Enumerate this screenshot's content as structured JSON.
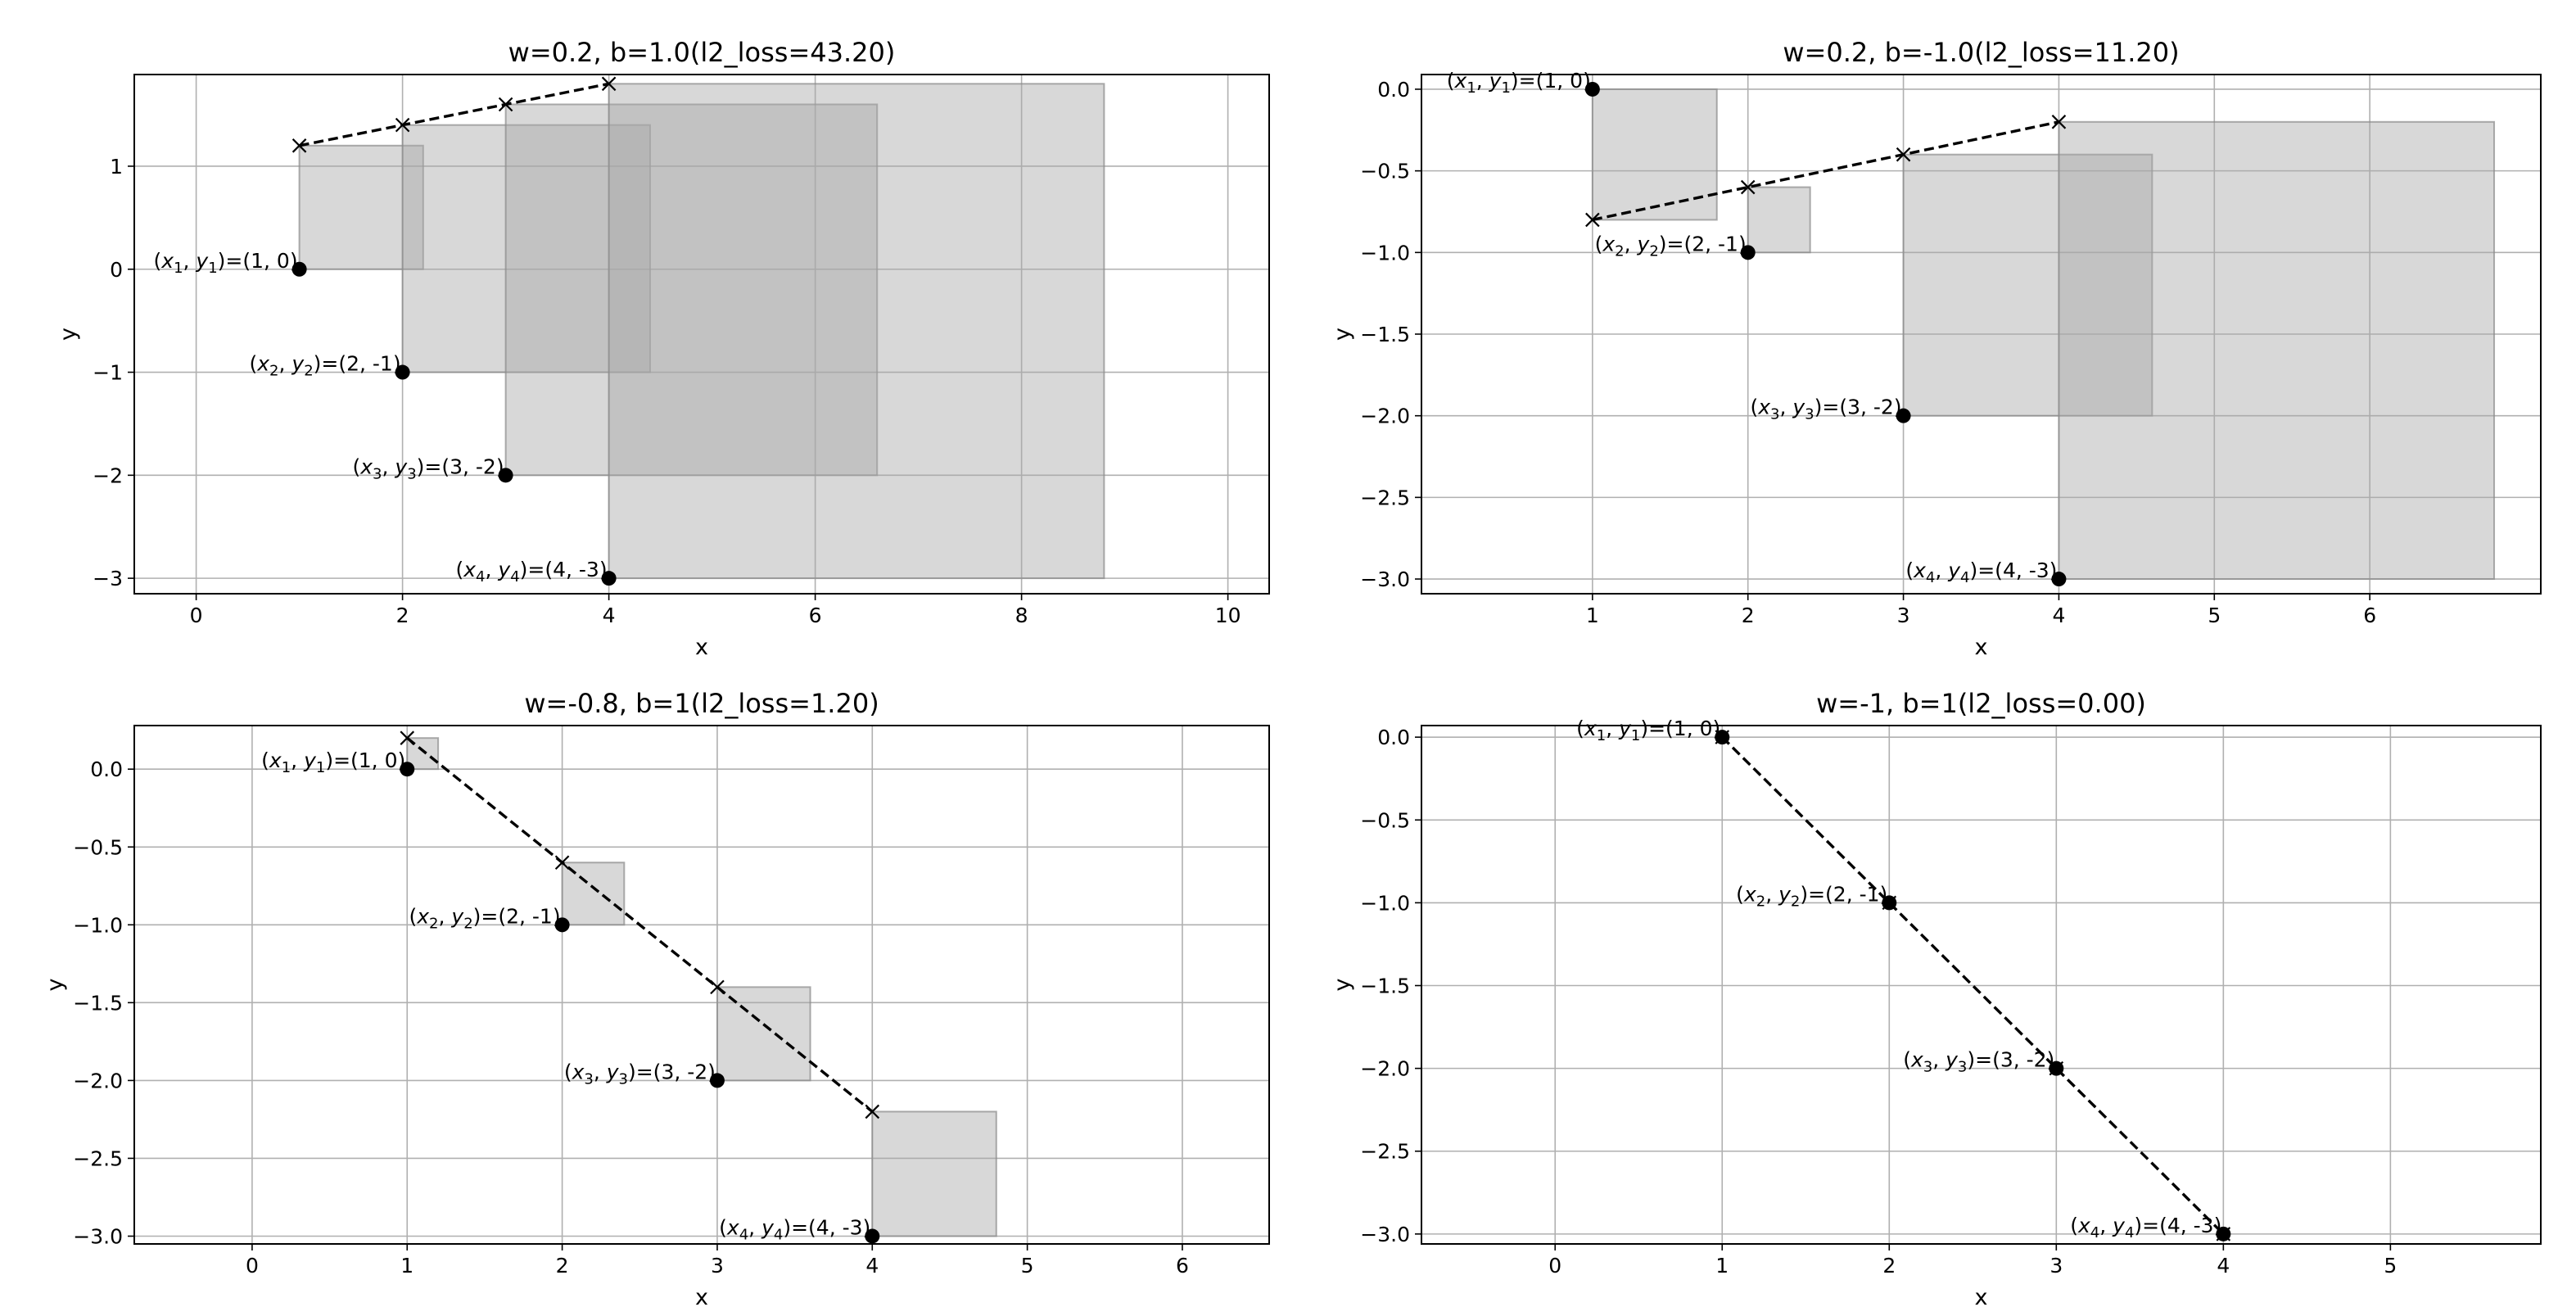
{
  "chart_data": [
    {
      "type": "scatter",
      "title": "w=0.2, b=1.0(l2_loss=43.20)",
      "xlabel": "x",
      "ylabel": "y",
      "xlim": [
        -0.6,
        10.4
      ],
      "ylim": [
        -3.15,
        1.89
      ],
      "xticks": [
        0,
        2,
        4,
        6,
        8,
        10
      ],
      "yticks": [
        -3,
        -2,
        -1,
        0,
        1
      ],
      "grid": true,
      "points": [
        {
          "x": 1,
          "y": 0
        },
        {
          "x": 2,
          "y": -1
        },
        {
          "x": 3,
          "y": -2
        },
        {
          "x": 4,
          "y": -3
        }
      ],
      "labels": [
        "(x1, y1)=(1, 0)",
        "(x2, y2)=(2, -1)",
        "(x3, y3)=(3, -2)",
        "(x4, y4)=(4, -3)"
      ],
      "fit_line": [
        {
          "x": 1,
          "y": 1.2
        },
        {
          "x": 2,
          "y": 1.4
        },
        {
          "x": 3,
          "y": 1.6
        },
        {
          "x": 4,
          "y": 1.8
        }
      ]
    },
    {
      "type": "scatter",
      "title": "w=0.2, b=-1.0(l2_loss=11.20)",
      "xlabel": "x",
      "ylabel": "y",
      "xlim": [
        -0.1,
        7.1
      ],
      "ylim": [
        -3.09,
        0.09
      ],
      "xticks": [
        1,
        2,
        3,
        4,
        5,
        6
      ],
      "yticks": [
        0.0,
        -0.5,
        -1.0,
        -1.5,
        -2.0,
        -2.5,
        -3.0
      ],
      "grid": true,
      "points": [
        {
          "x": 1,
          "y": 0
        },
        {
          "x": 2,
          "y": -1
        },
        {
          "x": 3,
          "y": -2
        },
        {
          "x": 4,
          "y": -3
        }
      ],
      "labels": [
        "(x1, y1)=(1, 0)",
        "(x2, y2)=(2, -1)",
        "(x3, y3)=(3, -2)",
        "(x4, y4)=(4, -3)"
      ],
      "fit_line": [
        {
          "x": 1,
          "y": -0.8
        },
        {
          "x": 2,
          "y": -0.6
        },
        {
          "x": 3,
          "y": -0.4
        },
        {
          "x": 4,
          "y": -0.2
        }
      ]
    },
    {
      "type": "scatter",
      "title": "w=-0.8, b=1(l2_loss=1.20)",
      "xlabel": "x",
      "ylabel": "y",
      "xlim": [
        -0.76,
        6.56
      ],
      "ylim": [
        -3.05,
        0.28
      ],
      "xticks": [
        0,
        1,
        2,
        3,
        4,
        5,
        6
      ],
      "yticks": [
        0.0,
        -0.5,
        -1.0,
        -1.5,
        -2.0,
        -2.5,
        -3.0
      ],
      "grid": true,
      "points": [
        {
          "x": 1,
          "y": 0
        },
        {
          "x": 2,
          "y": -1
        },
        {
          "x": 3,
          "y": -2
        },
        {
          "x": 4,
          "y": -3
        }
      ],
      "labels": [
        "(x1, y1)=(1, 0)",
        "(x2, y2)=(2, -1)",
        "(x3, y3)=(3, -2)",
        "(x4, y4)=(4, -3)"
      ],
      "fit_line": [
        {
          "x": 1,
          "y": 0.2
        },
        {
          "x": 2,
          "y": -0.6
        },
        {
          "x": 3,
          "y": -1.4
        },
        {
          "x": 4,
          "y": -2.2
        }
      ]
    },
    {
      "type": "scatter",
      "title": "w=-1, b=1(l2_loss=0.00)",
      "xlabel": "x",
      "ylabel": "y",
      "xlim": [
        -0.8,
        5.9
      ],
      "ylim": [
        -3.06,
        0.07
      ],
      "xticks": [
        0,
        1,
        2,
        3,
        4,
        5
      ],
      "yticks": [
        0.0,
        -0.5,
        -1.0,
        -1.5,
        -2.0,
        -2.5,
        -3.0
      ],
      "grid": true,
      "points": [
        {
          "x": 1,
          "y": 0
        },
        {
          "x": 2,
          "y": -1
        },
        {
          "x": 3,
          "y": -2
        },
        {
          "x": 4,
          "y": -3
        }
      ],
      "labels": [
        "(x1, y1)=(1, 0)",
        "(x2, y2)=(2, -1)",
        "(x3, y3)=(3, -2)",
        "(x4, y4)=(4, -3)"
      ],
      "fit_line": [
        {
          "x": 1,
          "y": 0
        },
        {
          "x": 2,
          "y": -1
        },
        {
          "x": 3,
          "y": -2
        },
        {
          "x": 4,
          "y": -3
        }
      ]
    }
  ]
}
